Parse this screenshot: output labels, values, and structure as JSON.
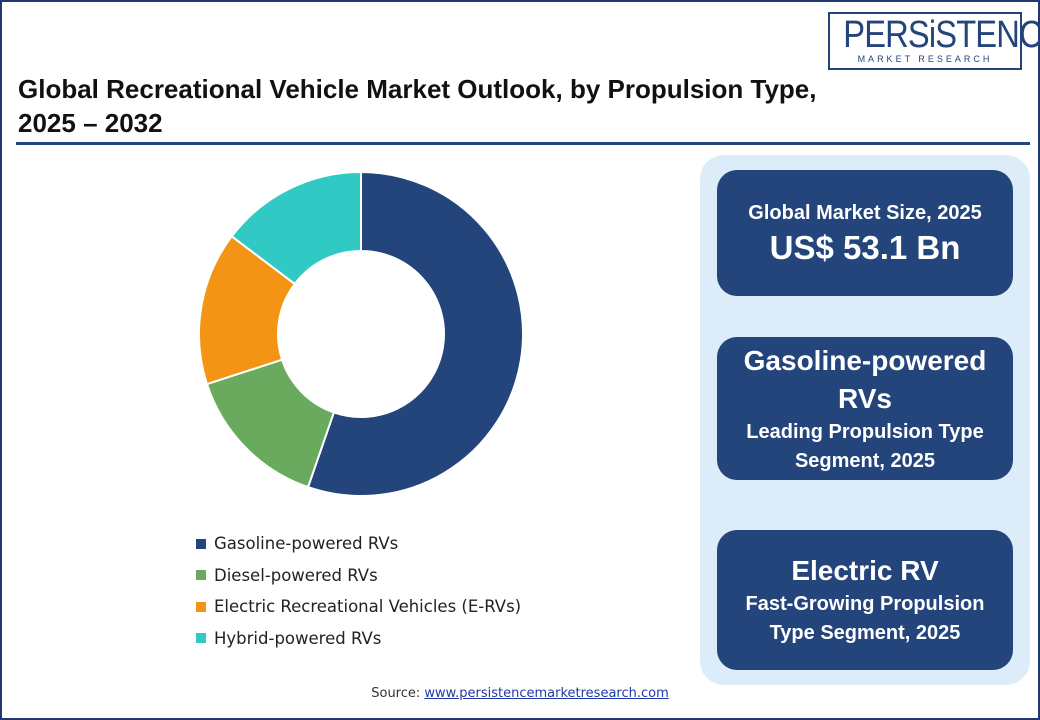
{
  "title": "Global Recreational Vehicle Market Outlook, by Propulsion Type,",
  "subtitle": "2025 – 2032",
  "logo": {
    "name": "PERSiSTENCE",
    "tagline": "MARKET RESEARCH"
  },
  "chart_data": {
    "type": "pie",
    "variant": "donut",
    "categories": [
      "Gasoline-powered RVs",
      "Diesel-powered RVs",
      "Electric Recreational Vehicles (E-RVs)",
      "Hybrid-powered RVs"
    ],
    "values": [
      55.3,
      14.7,
      15.3,
      14.7
    ],
    "colors": [
      "#24447c",
      "#6aaa5e",
      "#f39415",
      "#30c9c4"
    ],
    "legend_position": "bottom"
  },
  "cards": [
    {
      "headline": "Global Market Size, 2025",
      "value": "US$ 53.1 Bn"
    },
    {
      "headline_line1": "Gasoline-powered",
      "headline_line2": "RVs",
      "caption_line1": "Leading Propulsion Type",
      "caption_line2": "Segment, 2025"
    },
    {
      "headline": "Electric RV",
      "caption_line1": "Fast-Growing Propulsion",
      "caption_line2": "Type Segment, 2025"
    }
  ],
  "source": {
    "label": "Source:",
    "link": "www.persistencemarketresearch.com"
  },
  "colors": {
    "navy": "#24447c",
    "panel": "#dcecf8"
  }
}
